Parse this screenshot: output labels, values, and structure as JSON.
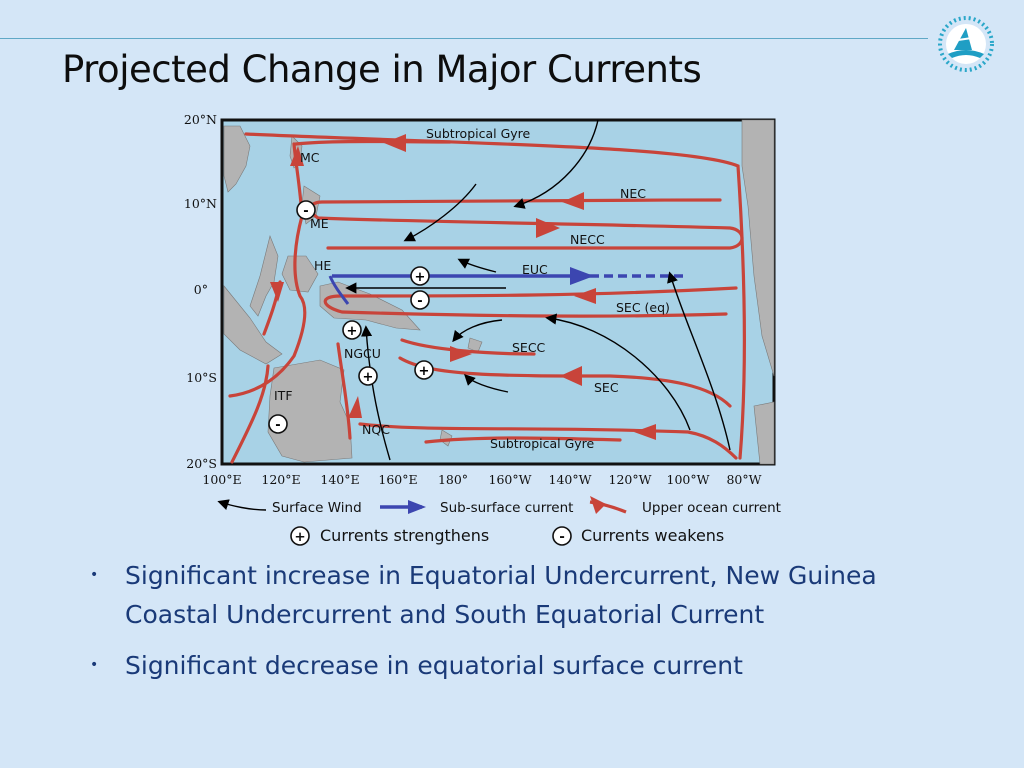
{
  "slide": {
    "title": "Projected Change in Major Currents"
  },
  "figure": {
    "y_ticks": [
      "20°N",
      "10°N",
      "0°",
      "10°S",
      "20°S"
    ],
    "x_ticks": [
      "100°E",
      "120°E",
      "140°E",
      "160°E",
      "180°",
      "160°W",
      "140°W",
      "120°W",
      "100°W",
      "80°W"
    ],
    "current_labels": {
      "subtropical_gyre_north": "Subtropical Gyre",
      "mc": "MC",
      "nec": "NEC",
      "me": "ME",
      "necc": "NECC",
      "he": "HE",
      "euc": "EUC",
      "sec_eq": "SEC (eq)",
      "secc": "SECC",
      "ngcu": "NGCU",
      "sec": "SEC",
      "itf": "ITF",
      "nqc": "NQC",
      "subtropical_gyre_south": "Subtropical Gyre"
    },
    "markers": {
      "plus": "+",
      "minus": "-"
    },
    "legend": {
      "surface_wind": "Surface Wind",
      "subsurface_current": "Sub-surface current",
      "upper_ocean_current": "Upper ocean current",
      "strengthens": "Currents strengthens",
      "weakens": "Currents weakens"
    },
    "colors": {
      "ocean": "#a8d2e6",
      "land": "#b3b3b3",
      "upper_current": "#c8443a",
      "subsurface_current": "#3c46b0",
      "wind": "#000000"
    }
  },
  "bullets": [
    "Significant increase in Equatorial Undercurrent, New Guinea Coastal Undercurrent and South Equatorial Current",
    "Significant decrease in equatorial surface current"
  ]
}
